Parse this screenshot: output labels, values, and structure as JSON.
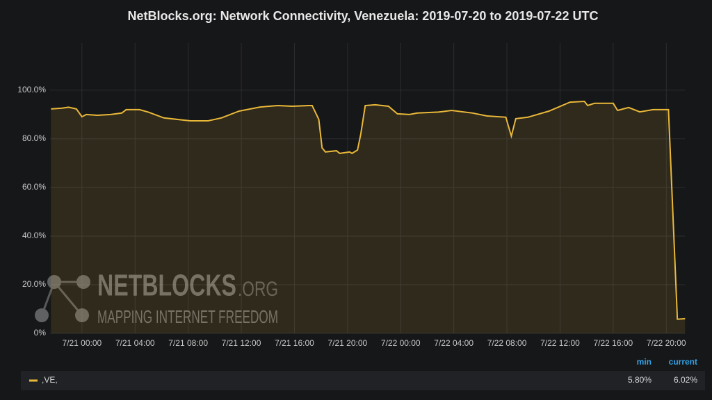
{
  "chart_data": {
    "type": "line",
    "title": "NetBlocks.org: Network Connectivity, Venezuela: 2019-07-20 to 2019-07-22 UTC",
    "x": [
      "7/20 21:40",
      "7/20 22:30",
      "7/20 23:00",
      "7/20 23:35",
      "7/21 00:00",
      "7/21 00:20",
      "7/21 01:10",
      "7/21 02:10",
      "7/21 03:00",
      "7/21 03:20",
      "7/21 04:20",
      "7/21 05:00",
      "7/21 06:10",
      "7/21 08:10",
      "7/21 09:30",
      "7/21 10:30",
      "7/21 11:50",
      "7/21 13:25",
      "7/21 14:45",
      "7/21 15:50",
      "7/21 17:05",
      "7/21 17:20",
      "7/21 17:50",
      "7/21 18:05",
      "7/21 18:20",
      "7/21 19:10",
      "7/21 19:25",
      "7/21 20:10",
      "7/21 20:20",
      "7/21 20:45",
      "7/21 21:00",
      "7/21 21:20",
      "7/21 22:05",
      "7/21 23:05",
      "7/21 23:45",
      "7/22 00:40",
      "7/22 01:15",
      "7/22 02:50",
      "7/22 03:50",
      "7/22 05:25",
      "7/22 06:30",
      "7/22 07:55",
      "7/22 08:20",
      "7/22 08:40",
      "7/22 09:35",
      "7/22 11:10",
      "7/22 12:45",
      "7/22 13:50",
      "7/22 14:05",
      "7/22 14:35",
      "7/22 16:00",
      "7/22 16:20",
      "7/22 17:10",
      "7/22 18:00",
      "7/22 19:00",
      "7/22 20:10",
      "7/22 20:50",
      "7/22 21:25"
    ],
    "series": [
      {
        "name": ",VE,",
        "color": "#eab839",
        "values": [
          92.3,
          92.6,
          93,
          92.3,
          89.1,
          90,
          89.7,
          90,
          90.6,
          92,
          92,
          91,
          88.6,
          87.4,
          87.4,
          88.6,
          91.4,
          93.1,
          93.7,
          93.4,
          93.7,
          93.7,
          88,
          76.3,
          74.6,
          75.1,
          74,
          74.6,
          74,
          75.4,
          82,
          93.7,
          94,
          93.4,
          90.3,
          90,
          90.6,
          91,
          91.7,
          90.6,
          89.4,
          88.9,
          81.1,
          88.3,
          88.9,
          91.4,
          95.1,
          95.4,
          93.7,
          94.6,
          94.6,
          91.7,
          92.9,
          91.1,
          92,
          92,
          5.8,
          6.02
        ],
        "stats": [
          {
            "value": 5.8,
            "label": "5.80%"
          },
          {
            "value": 6.02,
            "label": "6.02%"
          }
        ]
      }
    ],
    "stat_names": [
      "min",
      "current"
    ],
    "xlim": [
      "7/20 21:36",
      "7/22 21:24"
    ],
    "xticks": [
      "7/21 00:00",
      "7/21 04:00",
      "7/21 08:00",
      "7/21 12:00",
      "7/21 16:00",
      "7/21 20:00",
      "7/22 00:00",
      "7/22 04:00",
      "7/22 08:00",
      "7/22 12:00",
      "7/22 16:00",
      "7/22 20:00"
    ],
    "ylim": [
      0,
      119.4
    ],
    "yticks": [
      {
        "value": 0,
        "label": "0%"
      },
      {
        "value": 20,
        "label": "20.0%"
      },
      {
        "value": 40,
        "label": "40.0%"
      },
      {
        "value": 60,
        "label": "60.0%"
      },
      {
        "value": 80,
        "label": "80.0%"
      },
      {
        "value": 100,
        "label": "100.0%"
      }
    ],
    "grid": true,
    "watermark": {
      "title": "NETBLOCKS",
      "suffix": ".ORG",
      "subtitle": "MAPPING INTERNET FREEDOM"
    }
  }
}
